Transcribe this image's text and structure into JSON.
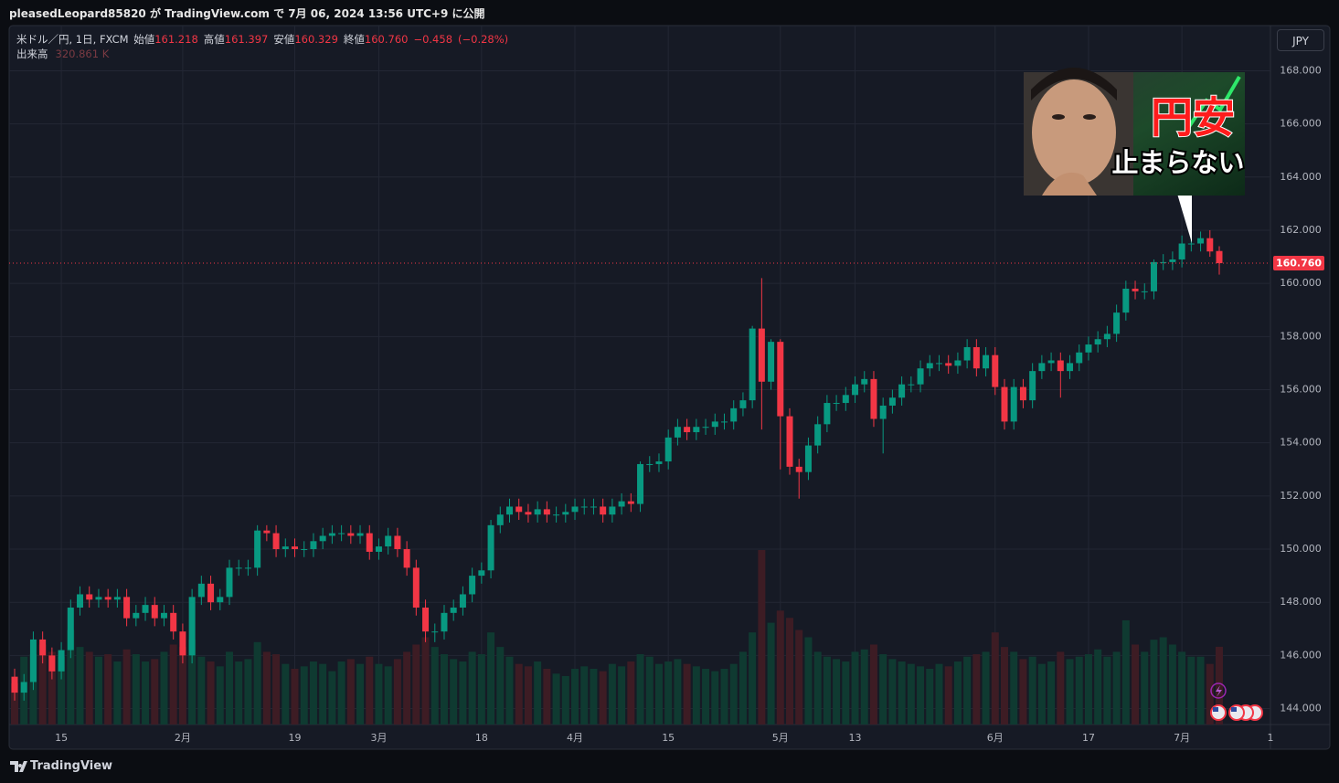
{
  "header": {
    "text": "pleasedLeopard85820 が TradingView.com で 7月 06, 2024 13:56 UTC+9 に公開"
  },
  "chart_data": {
    "type": "candlestick",
    "legend": {
      "symbol": "米ドル／円, 1日, FXCM",
      "open_label": "始値",
      "open": "161.218",
      "high_label": "高値",
      "high": "161.397",
      "low_label": "安値",
      "low": "160.329",
      "close_label": "終値",
      "close": "160.760",
      "change": "−0.458",
      "change_pct": "(−0.28%)",
      "volume_label": "出来高",
      "volume": "320.861 K"
    },
    "currency": "JPY",
    "categories": [
      null,
      null,
      null,
      null,
      null,
      "15",
      null,
      null,
      null,
      null,
      null,
      null,
      null,
      null,
      null,
      null,
      null,
      null,
      "2月",
      null,
      null,
      null,
      null,
      null,
      null,
      null,
      null,
      null,
      null,
      null,
      "19",
      null,
      null,
      null,
      null,
      null,
      null,
      null,
      null,
      "3月",
      null,
      null,
      null,
      null,
      null,
      null,
      null,
      null,
      null,
      null,
      "18",
      null,
      null,
      null,
      null,
      null,
      null,
      null,
      null,
      null,
      "4月",
      null,
      null,
      null,
      null,
      null,
      null,
      null,
      null,
      null,
      "15",
      null,
      null,
      null,
      null,
      null,
      null,
      null,
      null,
      null,
      null,
      null,
      "5月",
      null,
      null,
      null,
      null,
      null,
      null,
      null,
      "13",
      null,
      null,
      null,
      null,
      null,
      null,
      null,
      null,
      null,
      null,
      null,
      null,
      null,
      null,
      "6月",
      null,
      null,
      null,
      null,
      null,
      null,
      null,
      null,
      null,
      "17",
      null,
      null,
      null,
      null,
      null,
      null,
      null,
      null,
      null,
      "7月",
      null,
      null,
      null,
      null
    ],
    "x_extra_label": "1",
    "open": [
      145.2,
      144.6,
      145.0,
      146.6,
      146.0,
      145.4,
      146.2,
      147.8,
      148.3,
      148.1,
      148.2,
      148.1,
      148.2,
      147.4,
      147.6,
      147.9,
      147.4,
      147.6,
      146.9,
      146.0,
      148.2,
      148.7,
      148.0,
      148.2,
      149.3,
      149.3,
      149.3,
      150.7,
      150.6,
      150.0,
      150.1,
      150.0,
      150.0,
      150.3,
      150.5,
      150.6,
      150.6,
      150.5,
      150.6,
      149.9,
      150.1,
      150.5,
      150.0,
      149.3,
      147.8,
      146.9,
      146.9,
      147.6,
      147.8,
      148.3,
      149.0,
      149.2,
      150.9,
      151.3,
      151.6,
      151.4,
      151.3,
      151.5,
      151.3,
      151.3,
      151.4,
      151.6,
      151.6,
      151.6,
      151.3,
      151.6,
      151.8,
      151.7,
      153.2,
      153.2,
      153.3,
      154.2,
      154.6,
      154.4,
      154.6,
      154.6,
      154.8,
      154.8,
      155.3,
      155.6,
      158.3,
      156.3,
      157.8,
      155.0,
      153.1,
      152.9,
      153.9,
      154.7,
      155.5,
      155.5,
      155.8,
      156.2,
      156.4,
      154.9,
      155.4,
      155.7,
      156.2,
      156.2,
      156.8,
      157.0,
      157.0,
      156.9,
      157.1,
      157.6,
      156.8,
      157.3,
      156.1,
      154.8,
      156.1,
      155.6,
      156.7,
      157.0,
      157.1,
      156.7,
      157.0,
      157.4,
      157.7,
      157.9,
      158.1,
      158.9,
      159.8,
      159.7,
      159.7,
      160.8,
      160.8,
      160.9,
      161.5,
      161.5,
      161.7,
      161.218
    ],
    "high": [
      145.5,
      145.3,
      146.9,
      146.9,
      146.3,
      146.5,
      148.1,
      148.6,
      148.6,
      148.5,
      148.5,
      148.5,
      148.5,
      147.9,
      148.2,
      148.2,
      147.9,
      147.9,
      147.2,
      148.5,
      149.0,
      149.0,
      148.5,
      149.6,
      149.6,
      149.6,
      150.9,
      150.9,
      150.9,
      150.4,
      150.4,
      150.3,
      150.6,
      150.8,
      150.9,
      150.9,
      150.9,
      150.9,
      150.9,
      150.4,
      150.8,
      150.8,
      150.3,
      149.6,
      148.1,
      147.2,
      147.9,
      148.1,
      148.6,
      149.3,
      149.5,
      151.1,
      151.6,
      151.9,
      151.9,
      151.7,
      151.8,
      151.8,
      151.6,
      151.7,
      151.9,
      151.9,
      151.9,
      151.9,
      151.9,
      152.1,
      152.1,
      153.3,
      153.5,
      153.6,
      154.5,
      154.9,
      154.9,
      154.9,
      154.9,
      155.1,
      155.1,
      155.6,
      155.9,
      158.4,
      160.2,
      157.9,
      157.9,
      155.3,
      153.4,
      154.2,
      155.0,
      155.8,
      155.8,
      156.1,
      156.5,
      156.7,
      156.7,
      155.7,
      156.0,
      156.5,
      156.5,
      157.1,
      157.3,
      157.3,
      157.3,
      157.4,
      157.9,
      157.9,
      157.6,
      157.6,
      156.4,
      156.4,
      156.4,
      157.0,
      157.3,
      157.4,
      157.4,
      157.3,
      157.7,
      158.0,
      158.2,
      158.4,
      159.2,
      160.1,
      160.1,
      160.0,
      160.9,
      161.1,
      161.2,
      161.8,
      161.8,
      161.95,
      162.0,
      161.397
    ],
    "low": [
      144.3,
      144.3,
      144.7,
      145.7,
      145.1,
      145.1,
      145.9,
      147.5,
      147.8,
      147.8,
      147.8,
      147.8,
      147.1,
      147.1,
      147.3,
      147.1,
      147.1,
      146.6,
      145.7,
      145.7,
      147.9,
      147.7,
      147.7,
      147.9,
      149.0,
      149.0,
      149.0,
      150.3,
      149.7,
      149.7,
      149.7,
      149.7,
      149.7,
      150.0,
      150.2,
      150.3,
      150.2,
      150.2,
      149.6,
      149.6,
      149.8,
      149.7,
      149.0,
      147.5,
      146.5,
      146.5,
      146.6,
      147.3,
      147.5,
      148.0,
      148.7,
      148.9,
      150.6,
      151.0,
      151.1,
      151.0,
      151.0,
      151.0,
      151.0,
      151.0,
      151.1,
      151.3,
      151.3,
      151.0,
      151.0,
      151.3,
      151.4,
      151.4,
      152.9,
      152.9,
      153.0,
      153.9,
      154.1,
      154.1,
      154.3,
      154.3,
      154.5,
      154.5,
      155.0,
      155.3,
      154.5,
      156.0,
      153.0,
      152.8,
      151.9,
      152.6,
      153.6,
      154.4,
      155.2,
      155.2,
      155.5,
      155.9,
      154.6,
      153.6,
      155.1,
      155.4,
      155.9,
      155.9,
      156.5,
      156.7,
      156.6,
      156.6,
      156.8,
      156.5,
      156.5,
      155.8,
      154.5,
      154.5,
      155.3,
      155.3,
      156.4,
      156.7,
      155.7,
      156.4,
      156.7,
      157.1,
      157.4,
      157.6,
      157.8,
      158.6,
      159.4,
      159.4,
      159.4,
      160.5,
      160.5,
      160.6,
      161.2,
      161.2,
      161.0,
      160.329
    ],
    "close": [
      144.6,
      145.0,
      146.6,
      146.0,
      145.4,
      146.2,
      147.8,
      148.3,
      148.1,
      148.2,
      148.1,
      148.2,
      147.4,
      147.6,
      147.9,
      147.4,
      147.6,
      146.9,
      146.0,
      148.2,
      148.7,
      148.0,
      148.2,
      149.3,
      149.3,
      149.3,
      150.7,
      150.6,
      150.0,
      150.1,
      150.0,
      150.0,
      150.3,
      150.5,
      150.6,
      150.6,
      150.5,
      150.6,
      149.9,
      150.1,
      150.5,
      150.0,
      149.3,
      147.8,
      146.9,
      146.9,
      147.6,
      147.8,
      148.3,
      149.0,
      149.2,
      150.9,
      151.3,
      151.6,
      151.4,
      151.3,
      151.5,
      151.3,
      151.3,
      151.4,
      151.6,
      151.6,
      151.6,
      151.3,
      151.6,
      151.8,
      151.7,
      153.2,
      153.2,
      153.3,
      154.2,
      154.6,
      154.4,
      154.6,
      154.6,
      154.8,
      154.8,
      155.3,
      155.6,
      158.3,
      156.3,
      157.8,
      155.0,
      153.1,
      152.9,
      153.9,
      154.7,
      155.5,
      155.5,
      155.8,
      156.2,
      156.4,
      154.9,
      155.4,
      155.7,
      156.2,
      156.2,
      156.8,
      157.0,
      157.0,
      156.9,
      157.1,
      157.6,
      156.8,
      157.3,
      156.1,
      154.8,
      156.1,
      155.6,
      156.7,
      157.0,
      157.1,
      156.7,
      157.0,
      157.4,
      157.7,
      157.9,
      158.1,
      158.9,
      159.8,
      159.7,
      159.7,
      160.8,
      160.8,
      160.9,
      161.5,
      161.5,
      161.7,
      161.2,
      160.76
    ],
    "volume": [
      170,
      280,
      290,
      330,
      300,
      280,
      390,
      320,
      300,
      280,
      290,
      260,
      310,
      290,
      260,
      270,
      300,
      330,
      320,
      350,
      280,
      260,
      240,
      300,
      260,
      270,
      340,
      300,
      290,
      250,
      230,
      240,
      260,
      250,
      220,
      260,
      270,
      250,
      280,
      250,
      240,
      270,
      300,
      330,
      360,
      320,
      290,
      270,
      260,
      300,
      290,
      380,
      320,
      280,
      250,
      240,
      260,
      230,
      210,
      200,
      230,
      240,
      230,
      220,
      250,
      240,
      260,
      290,
      280,
      250,
      260,
      270,
      250,
      240,
      230,
      220,
      230,
      250,
      300,
      380,
      720,
      420,
      470,
      440,
      390,
      360,
      300,
      280,
      270,
      260,
      300,
      310,
      330,
      290,
      270,
      260,
      250,
      240,
      230,
      250,
      240,
      260,
      280,
      290,
      300,
      380,
      320,
      300,
      270,
      280,
      250,
      260,
      300,
      270,
      280,
      290,
      310,
      280,
      300,
      430,
      330,
      300,
      350,
      360,
      330,
      300,
      280,
      280,
      250,
      320.861
    ],
    "up_color": "#089981",
    "down_color": "#f23645",
    "volume_up_color": "#0f3a31",
    "volume_down_color": "#3d1c24",
    "ylim": [
      143.4,
      169.7
    ],
    "yticks": [
      {
        "value": 144,
        "label": "144.000"
      },
      {
        "value": 146,
        "label": "146.000"
      },
      {
        "value": 148,
        "label": "148.000"
      },
      {
        "value": 150,
        "label": "150.000"
      },
      {
        "value": 152,
        "label": "152.000"
      },
      {
        "value": 154,
        "label": "154.000"
      },
      {
        "value": 156,
        "label": "156.000"
      },
      {
        "value": 158,
        "label": "158.000"
      },
      {
        "value": 160,
        "label": "160.000"
      },
      {
        "value": 162,
        "label": "162.000"
      },
      {
        "value": 164,
        "label": "164.000"
      },
      {
        "value": 166,
        "label": "166.000"
      },
      {
        "value": 168,
        "label": "168.000"
      }
    ],
    "grid": true,
    "last_price": {
      "value": 160.76,
      "label": "160.760"
    },
    "annotation": {
      "line1": "円安",
      "line2": "止まらない"
    }
  },
  "footer": {
    "brand": "TradingView"
  }
}
